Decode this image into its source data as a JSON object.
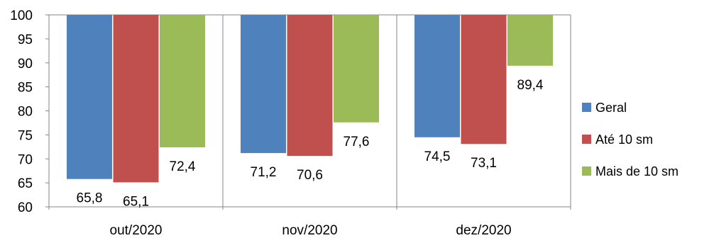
{
  "chart_data": {
    "type": "bar",
    "title": "",
    "xlabel": "",
    "ylabel": "",
    "categories": [
      "out/2020",
      "nov/2020",
      "dez/2020"
    ],
    "series": [
      {
        "name": "Geral",
        "color": "#4F81BD",
        "values": [
          65.8,
          71.2,
          74.5
        ],
        "labels": [
          "65,8",
          "71,2",
          "74,5"
        ]
      },
      {
        "name": "Até 10 sm",
        "color": "#C0504D",
        "values": [
          65.1,
          70.6,
          73.1
        ],
        "labels": [
          "65,1",
          "70,6",
          "73,1"
        ]
      },
      {
        "name": "Mais de 10 sm",
        "color": "#9BBB59",
        "values": [
          72.4,
          77.6,
          89.4
        ],
        "labels": [
          "72,4",
          "77,6",
          "89,4"
        ]
      }
    ],
    "ylim": [
      60,
      100
    ],
    "yticks": [
      "60",
      "65",
      "70",
      "75",
      "80",
      "85",
      "90",
      "95",
      "100"
    ],
    "bars_hang_from_top": true,
    "grid": false,
    "legend_position": "right"
  }
}
